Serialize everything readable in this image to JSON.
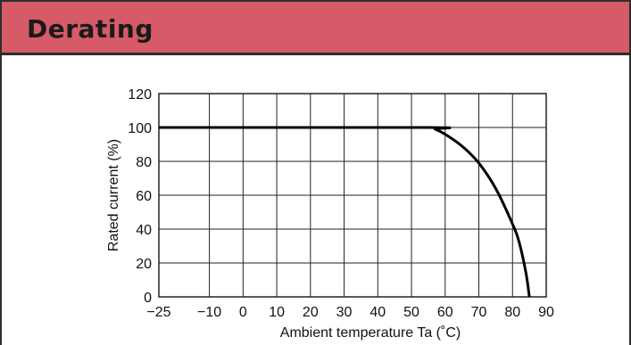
{
  "header": {
    "title": "Derating"
  },
  "chart_data": {
    "type": "line",
    "title": "",
    "xlabel": "Ambient temperature Ta (˚C)",
    "ylabel": "Rated current (%)",
    "x_ticks": [
      -25,
      -10,
      0,
      10,
      20,
      30,
      40,
      50,
      60,
      70,
      80,
      90
    ],
    "x_tick_labels": [
      "−25",
      "−10",
      "0",
      "10",
      "20",
      "30",
      "40",
      "50",
      "60",
      "70",
      "80",
      "90"
    ],
    "y_ticks": [
      0,
      20,
      40,
      60,
      80,
      100,
      120
    ],
    "y_tick_labels": [
      "0",
      "20",
      "40",
      "60",
      "80",
      "100",
      "120"
    ],
    "xlim": [
      -25,
      90
    ],
    "ylim": [
      0,
      120
    ],
    "grid": true,
    "series": [
      {
        "x": [
          -25,
          55,
          57,
          60,
          65,
          70,
          75,
          80,
          82,
          84,
          85
        ],
        "y": [
          100,
          100,
          99,
          96,
          89,
          79,
          64,
          43,
          32,
          14,
          0
        ]
      }
    ],
    "line_color": "#000000"
  },
  "colors": {
    "header_bg": "#d65a67",
    "border": "#2e2e2e"
  }
}
